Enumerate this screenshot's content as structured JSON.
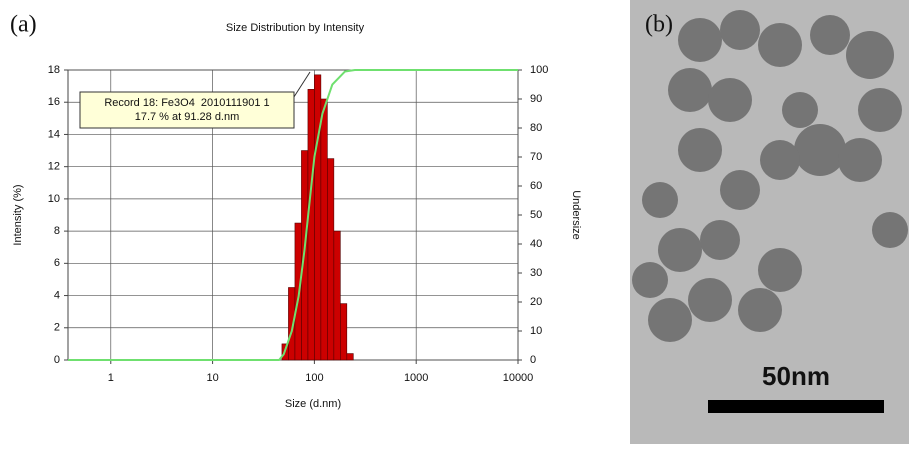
{
  "panel_labels": [
    "(a)",
    "(b)"
  ],
  "chart_data": {
    "type": "histogram",
    "title": "Size Distribution by Intensity",
    "x_label": "Size (d.nm)",
    "y_label": "Intensity (%)",
    "y2_label": "Undersize",
    "xscale": "log",
    "xlim": [
      0.38,
      10000
    ],
    "xticks": [
      1,
      10,
      100,
      1000,
      10000
    ],
    "ylim": [
      0,
      18
    ],
    "yticks": [
      0,
      2,
      4,
      6,
      8,
      10,
      12,
      14,
      16,
      18
    ],
    "y2lim": [
      0,
      100
    ],
    "y2ticks": [
      0,
      10,
      20,
      30,
      40,
      50,
      60,
      70,
      80,
      90,
      100
    ],
    "grid": true,
    "color": "#cc0000",
    "bins": [
      48,
      55.6,
      64.4,
      74.6,
      86.4,
      100,
      115.8,
      134.1,
      155.3,
      179.8,
      208.2,
      241
    ],
    "values": [
      1.0,
      4.5,
      8.5,
      13.0,
      16.8,
      17.7,
      16.2,
      12.5,
      8.0,
      3.5,
      0.4
    ],
    "line": {
      "axis": "y2",
      "color": "#6fe06f",
      "x": [
        0.38,
        45,
        50,
        60,
        70,
        80,
        90,
        100,
        120,
        150,
        200,
        250,
        10000
      ],
      "values": [
        0,
        0,
        2,
        10,
        22,
        38,
        55,
        70,
        85,
        95,
        99.5,
        100,
        100
      ]
    },
    "annotations": [
      "Record 18: Fe3O4  2010111901 1",
      "17.7 % at 91.28 d.nm"
    ]
  },
  "image": {
    "scale_label": "50nm"
  }
}
